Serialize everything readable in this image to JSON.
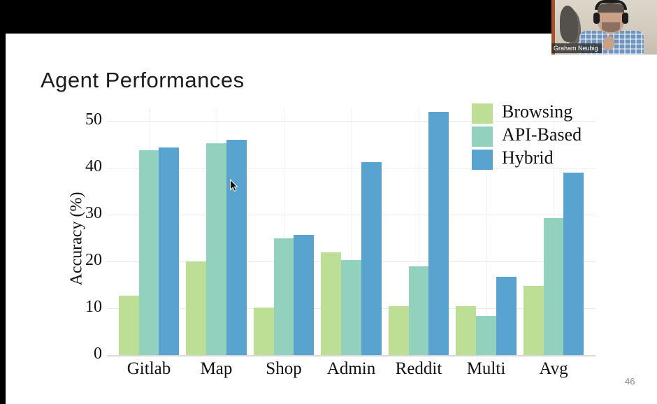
{
  "window": {
    "page_number": "46"
  },
  "webcam": {
    "name_label": "Graham Neubig"
  },
  "slide": {
    "title": "Agent Performances"
  },
  "chart_data": {
    "type": "bar",
    "title": "Agent Performances",
    "categories": [
      "Gitlab",
      "Map",
      "Shop",
      "Admin",
      "Reddit",
      "Multi",
      "Avg"
    ],
    "series": [
      {
        "name": "Browsing",
        "color": "#bddf95",
        "values": [
          12.7,
          20.0,
          10.1,
          22.0,
          10.4,
          10.4,
          14.8
        ]
      },
      {
        "name": "API-Based",
        "color": "#93d1bf",
        "values": [
          43.7,
          45.2,
          25.0,
          20.3,
          18.9,
          8.3,
          29.2
        ]
      },
      {
        "name": "Hybrid",
        "color": "#58a3cf",
        "values": [
          44.4,
          45.9,
          25.7,
          41.2,
          51.9,
          16.7,
          38.9
        ]
      }
    ],
    "xlabel": "",
    "ylabel": "Accuracy (%)",
    "yticks": [
      0,
      10,
      20,
      30,
      40,
      50
    ],
    "ylim": [
      0,
      52.5
    ],
    "grid": true,
    "legend_position": "upper right"
  }
}
